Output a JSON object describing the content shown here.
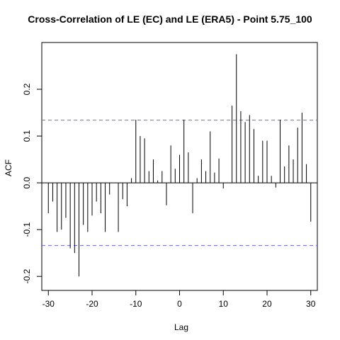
{
  "chart_data": {
    "type": "bar",
    "title": "Cross-Correlation of LE (EC) and LE (ERA5) - Point 5.75_100",
    "xlabel": "Lag",
    "ylabel": "ACF",
    "xlim": [
      -31.5,
      31.5
    ],
    "ylim": [
      -0.23,
      0.3
    ],
    "xticks": [
      -30,
      -20,
      -10,
      0,
      10,
      20,
      30
    ],
    "yticks": [
      -0.2,
      -0.1,
      0.0,
      0.1,
      0.2
    ],
    "xtick_labels": [
      "-30",
      "-20",
      "-10",
      "0",
      "10",
      "20",
      "30"
    ],
    "ytick_labels": [
      "-0.2",
      "-0.1",
      "0.0",
      "0.1",
      "0.2"
    ],
    "confidence_band": 0.134,
    "colors": {
      "bars": "#000000",
      "confidence": "#6a6adc",
      "zero_line": "#000000"
    },
    "x": [
      -30,
      -29,
      -28,
      -27,
      -26,
      -25,
      -24,
      -23,
      -22,
      -21,
      -20,
      -19,
      -18,
      -17,
      -16,
      -15,
      -14,
      -13,
      -12,
      -11,
      -10,
      -9,
      -8,
      -7,
      -6,
      -5,
      -4,
      -3,
      -2,
      -1,
      0,
      1,
      2,
      3,
      4,
      5,
      6,
      7,
      8,
      9,
      10,
      11,
      12,
      13,
      14,
      15,
      16,
      17,
      18,
      19,
      20,
      21,
      22,
      23,
      24,
      25,
      26,
      27,
      28,
      29,
      30
    ],
    "values": [
      -0.065,
      -0.04,
      -0.105,
      -0.1,
      -0.075,
      -0.14,
      -0.15,
      -0.2,
      -0.09,
      -0.105,
      -0.07,
      -0.04,
      -0.065,
      -0.105,
      -0.025,
      0.0,
      -0.105,
      -0.035,
      -0.05,
      0.01,
      0.135,
      0.1,
      0.095,
      0.025,
      0.05,
      0.005,
      0.025,
      -0.048,
      0.08,
      0.03,
      0.06,
      0.135,
      0.065,
      -0.065,
      0.01,
      0.05,
      0.025,
      0.11,
      0.022,
      0.052,
      -0.012,
      0.0,
      0.165,
      0.275,
      0.153,
      0.13,
      0.145,
      0.115,
      0.015,
      0.09,
      0.09,
      0.015,
      -0.01,
      0.135,
      0.035,
      0.08,
      0.05,
      0.118,
      0.15,
      0.04,
      -0.083
    ]
  }
}
